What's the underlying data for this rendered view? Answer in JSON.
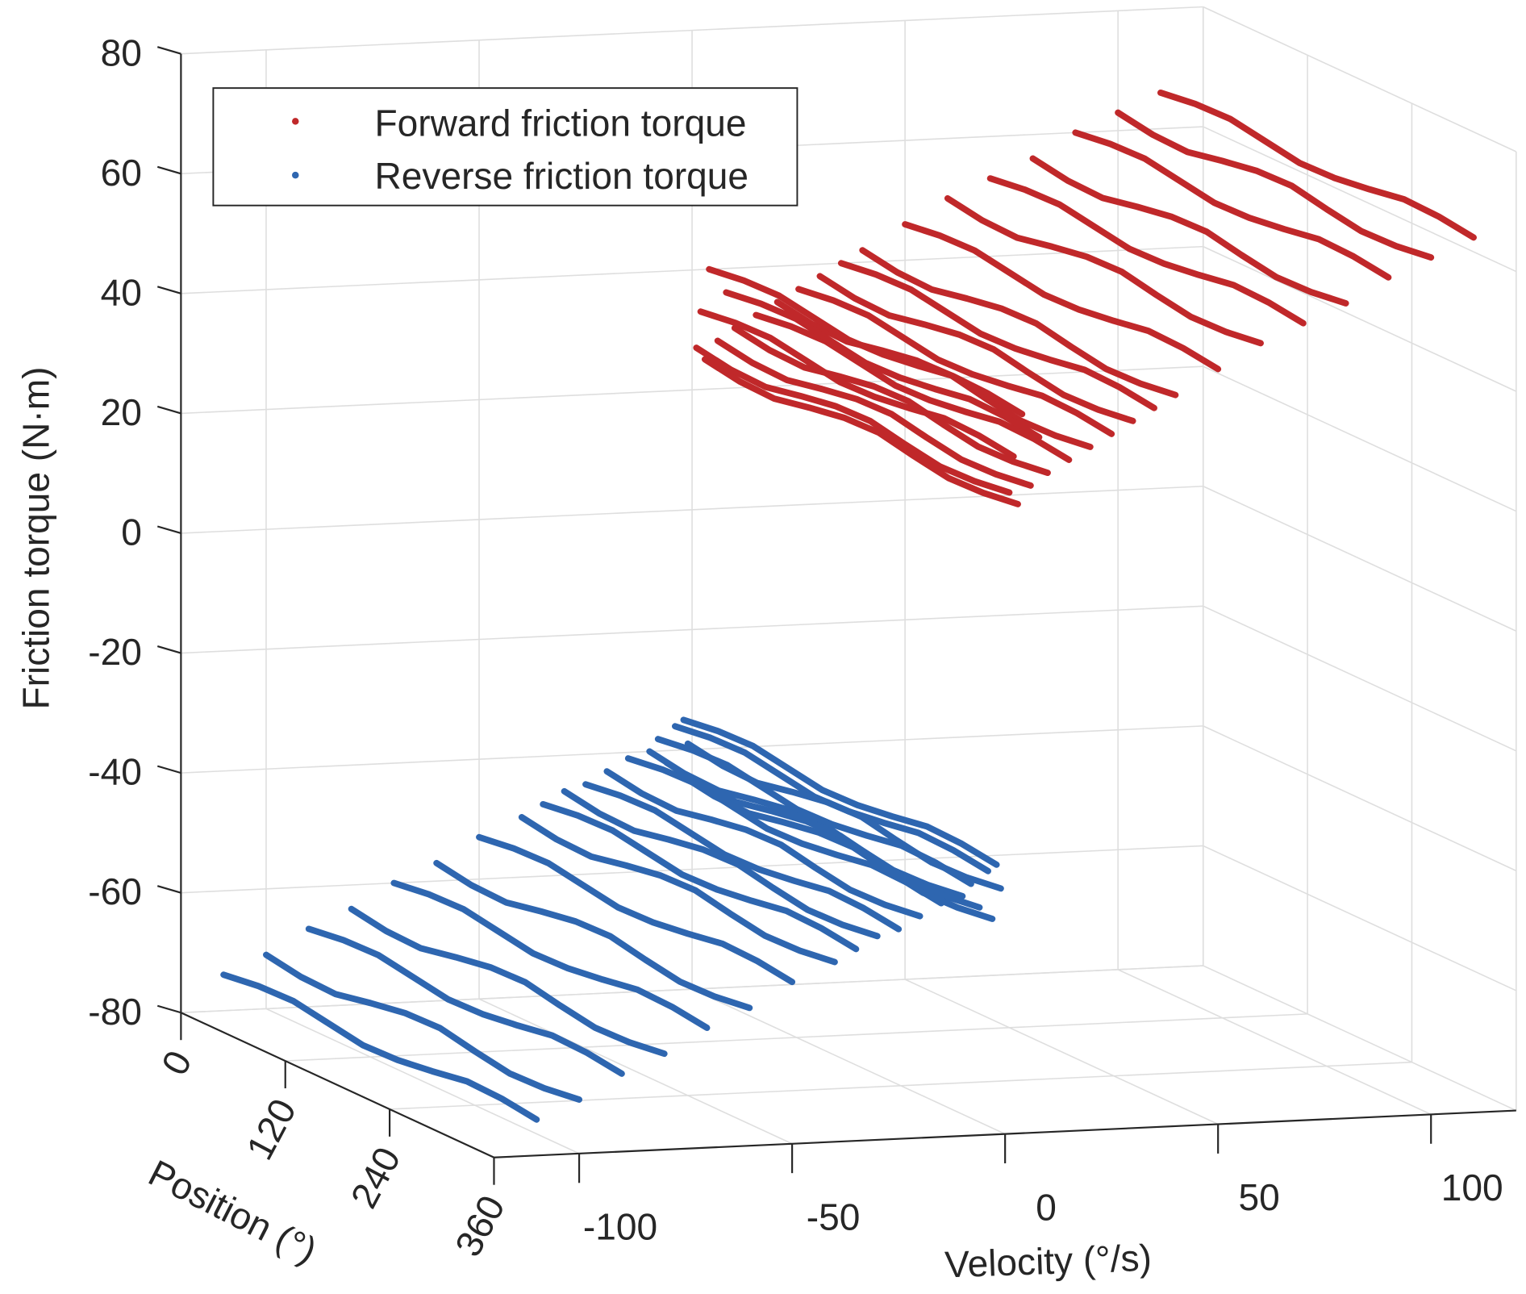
{
  "chart_data": {
    "type": "scatter3d",
    "title": "",
    "xlabel": "Position (°)",
    "ylabel": "Velocity (°/s)",
    "zlabel": "Friction torque (N·m)",
    "xlim": [
      0,
      360
    ],
    "ylim": [
      -120,
      120
    ],
    "zlim": [
      -80,
      80
    ],
    "xticks": [
      "0",
      "120",
      "240",
      "360"
    ],
    "yticks": [
      "-100",
      "-50",
      "0",
      "50",
      "100"
    ],
    "zticks": [
      "80",
      "60",
      "40",
      "20",
      "0",
      "-20",
      "-40",
      "-60",
      "-80"
    ],
    "grid": true,
    "legend_position": "top-left",
    "positions": [
      0,
      40,
      80,
      120,
      160,
      200,
      240,
      280,
      320,
      360
    ],
    "series": [
      {
        "name": "Forward friction torque",
        "color": "#c0282a",
        "lines": [
          {
            "velocity": 110,
            "torque": [
              66,
              66.8,
              67,
              66,
              65,
              65.2,
              66,
              67,
              66.8,
              66
            ]
          },
          {
            "velocity": 100,
            "torque": [
              63,
              62,
              61.8,
              63,
              64,
              64.2,
              63,
              62,
              62.2,
              63
            ]
          },
          {
            "velocity": 90,
            "torque": [
              60,
              60.8,
              61,
              60,
              59,
              59.2,
              60,
              61,
              60.8,
              60
            ]
          },
          {
            "velocity": 80,
            "torque": [
              56,
              55,
              54.8,
              56,
              57,
              57.2,
              56,
              55,
              55.2,
              56
            ]
          },
          {
            "velocity": 70,
            "torque": [
              53,
              53.8,
              54,
              53,
              52,
              52.2,
              53,
              54,
              53.8,
              53
            ]
          },
          {
            "velocity": 60,
            "torque": [
              50,
              49,
              48.8,
              50,
              51,
              51.2,
              50,
              49,
              49.2,
              50
            ]
          },
          {
            "velocity": 50,
            "torque": [
              46,
              46.8,
              47,
              46,
              45,
              45.2,
              46,
              47,
              46.8,
              46
            ]
          },
          {
            "velocity": 40,
            "torque": [
              42,
              41,
              40.8,
              42,
              43,
              43.2,
              42,
              41,
              41.2,
              42
            ]
          },
          {
            "velocity": 35,
            "torque": [
              40,
              40.8,
              41,
              40,
              39,
              39.2,
              40,
              41,
              40.8,
              40
            ]
          },
          {
            "velocity": 30,
            "torque": [
              38,
              37,
              36.8,
              38,
              39,
              39.2,
              38,
              37,
              37.2,
              38
            ]
          },
          {
            "velocity": 25,
            "torque": [
              36,
              36.8,
              37,
              36,
              35,
              35.2,
              36,
              37,
              36.8,
              36
            ]
          },
          {
            "velocity": 20,
            "torque": [
              34,
              33,
              32.8,
              34,
              35,
              35.2,
              34,
              33,
              33.2,
              34
            ]
          },
          {
            "velocity": 15,
            "torque": [
              32,
              32.8,
              33,
              32,
              31,
              31.2,
              32,
              33,
              32.8,
              32
            ]
          },
          {
            "velocity": 10,
            "torque": [
              30,
              29,
              28.8,
              30,
              31,
              31.2,
              30,
              29,
              29.2,
              30
            ]
          },
          {
            "velocity": 8,
            "torque": [
              36,
              36.8,
              37,
              36,
              35,
              35.2,
              36,
              37,
              36.8,
              36
            ]
          },
          {
            "velocity": 6,
            "torque": [
              28,
              27,
              26.8,
              28,
              29,
              29.2,
              28,
              27,
              27.2,
              28
            ]
          },
          {
            "velocity": 4,
            "torque": [
              40,
              40.8,
              41,
              40,
              39,
              39.2,
              40,
              41,
              40.8,
              40
            ]
          },
          {
            "velocity": 3,
            "torque": [
              25,
              24,
              23.8,
              25,
              26,
              26.2,
              25,
              24,
              24.2,
              25
            ]
          },
          {
            "velocity": 2,
            "torque": [
              33,
              33.8,
              34,
              33,
              32,
              32.2,
              33,
              34,
              33.8,
              33
            ]
          },
          {
            "velocity": 1,
            "torque": [
              27,
              26,
              25.8,
              27,
              28,
              28.2,
              27,
              26,
              26.2,
              27
            ]
          }
        ]
      },
      {
        "name": "Reverse friction torque",
        "color": "#2e66b0",
        "lines": [
          {
            "velocity": -110,
            "torque": [
              -74,
              -73.2,
              -73,
              -74,
              -75,
              -74.8,
              -74,
              -73,
              -73.2,
              -74
            ]
          },
          {
            "velocity": -100,
            "torque": [
              -71,
              -72,
              -72.2,
              -71,
              -70,
              -69.8,
              -71,
              -72,
              -71.8,
              -71
            ]
          },
          {
            "velocity": -90,
            "torque": [
              -67,
              -66.2,
              -66,
              -67,
              -68,
              -67.8,
              -67,
              -66,
              -66.2,
              -67
            ]
          },
          {
            "velocity": -80,
            "torque": [
              -64,
              -65,
              -65.2,
              -64,
              -63,
              -62.8,
              -64,
              -65,
              -64.8,
              -64
            ]
          },
          {
            "velocity": -70,
            "torque": [
              -60,
              -59.2,
              -59,
              -60,
              -61,
              -60.8,
              -60,
              -59,
              -59.2,
              -60
            ]
          },
          {
            "velocity": -60,
            "torque": [
              -57,
              -58,
              -58.2,
              -57,
              -56,
              -55.8,
              -57,
              -58,
              -57.8,
              -57
            ]
          },
          {
            "velocity": -50,
            "torque": [
              -53,
              -52.2,
              -52,
              -53,
              -54,
              -53.8,
              -53,
              -52,
              -52.2,
              -53
            ]
          },
          {
            "velocity": -40,
            "torque": [
              -50,
              -51,
              -51.2,
              -50,
              -49,
              -48.8,
              -50,
              -51,
              -50.8,
              -50
            ]
          },
          {
            "velocity": -35,
            "torque": [
              -48,
              -47.2,
              -47,
              -48,
              -49,
              -48.8,
              -48,
              -47,
              -47.2,
              -48
            ]
          },
          {
            "velocity": -30,
            "torque": [
              -46,
              -47,
              -47.2,
              -46,
              -45,
              -44.8,
              -46,
              -47,
              -46.8,
              -46
            ]
          },
          {
            "velocity": -25,
            "torque": [
              -45,
              -44.2,
              -44,
              -45,
              -46,
              -45.8,
              -45,
              -44,
              -44.2,
              -45
            ]
          },
          {
            "velocity": -20,
            "torque": [
              -43,
              -44,
              -44.2,
              -43,
              -42,
              -41.8,
              -43,
              -44,
              -43.8,
              -43
            ]
          },
          {
            "velocity": -15,
            "torque": [
              -41,
              -40.2,
              -40,
              -41,
              -42,
              -41.8,
              -41,
              -40,
              -40.2,
              -41
            ]
          },
          {
            "velocity": -10,
            "torque": [
              -40,
              -41,
              -41.2,
              -40,
              -39,
              -38.8,
              -40,
              -41,
              -40.8,
              -40
            ]
          },
          {
            "velocity": -8,
            "torque": [
              -38,
              -37.2,
              -37,
              -38,
              -39,
              -38.8,
              -38,
              -37,
              -37.2,
              -38
            ]
          },
          {
            "velocity": -6,
            "torque": [
              -42,
              -43,
              -43.2,
              -42,
              -41,
              -40.8,
              -42,
              -43,
              -42.8,
              -42
            ]
          },
          {
            "velocity": -4,
            "torque": [
              -36,
              -35.2,
              -35,
              -36,
              -37,
              -36.8,
              -36,
              -35,
              -35.2,
              -36
            ]
          },
          {
            "velocity": -3,
            "torque": [
              -44,
              -45,
              -45.2,
              -44,
              -43,
              -42.8,
              -44,
              -45,
              -44.8,
              -44
            ]
          },
          {
            "velocity": -2,
            "torque": [
              -35,
              -34.2,
              -34,
              -35,
              -36,
              -35.8,
              -35,
              -34,
              -34.2,
              -35
            ]
          },
          {
            "velocity": -1,
            "torque": [
              -39,
              -40,
              -40.2,
              -39,
              -38,
              -37.8,
              -39,
              -40,
              -39.8,
              -39
            ]
          }
        ]
      }
    ]
  }
}
